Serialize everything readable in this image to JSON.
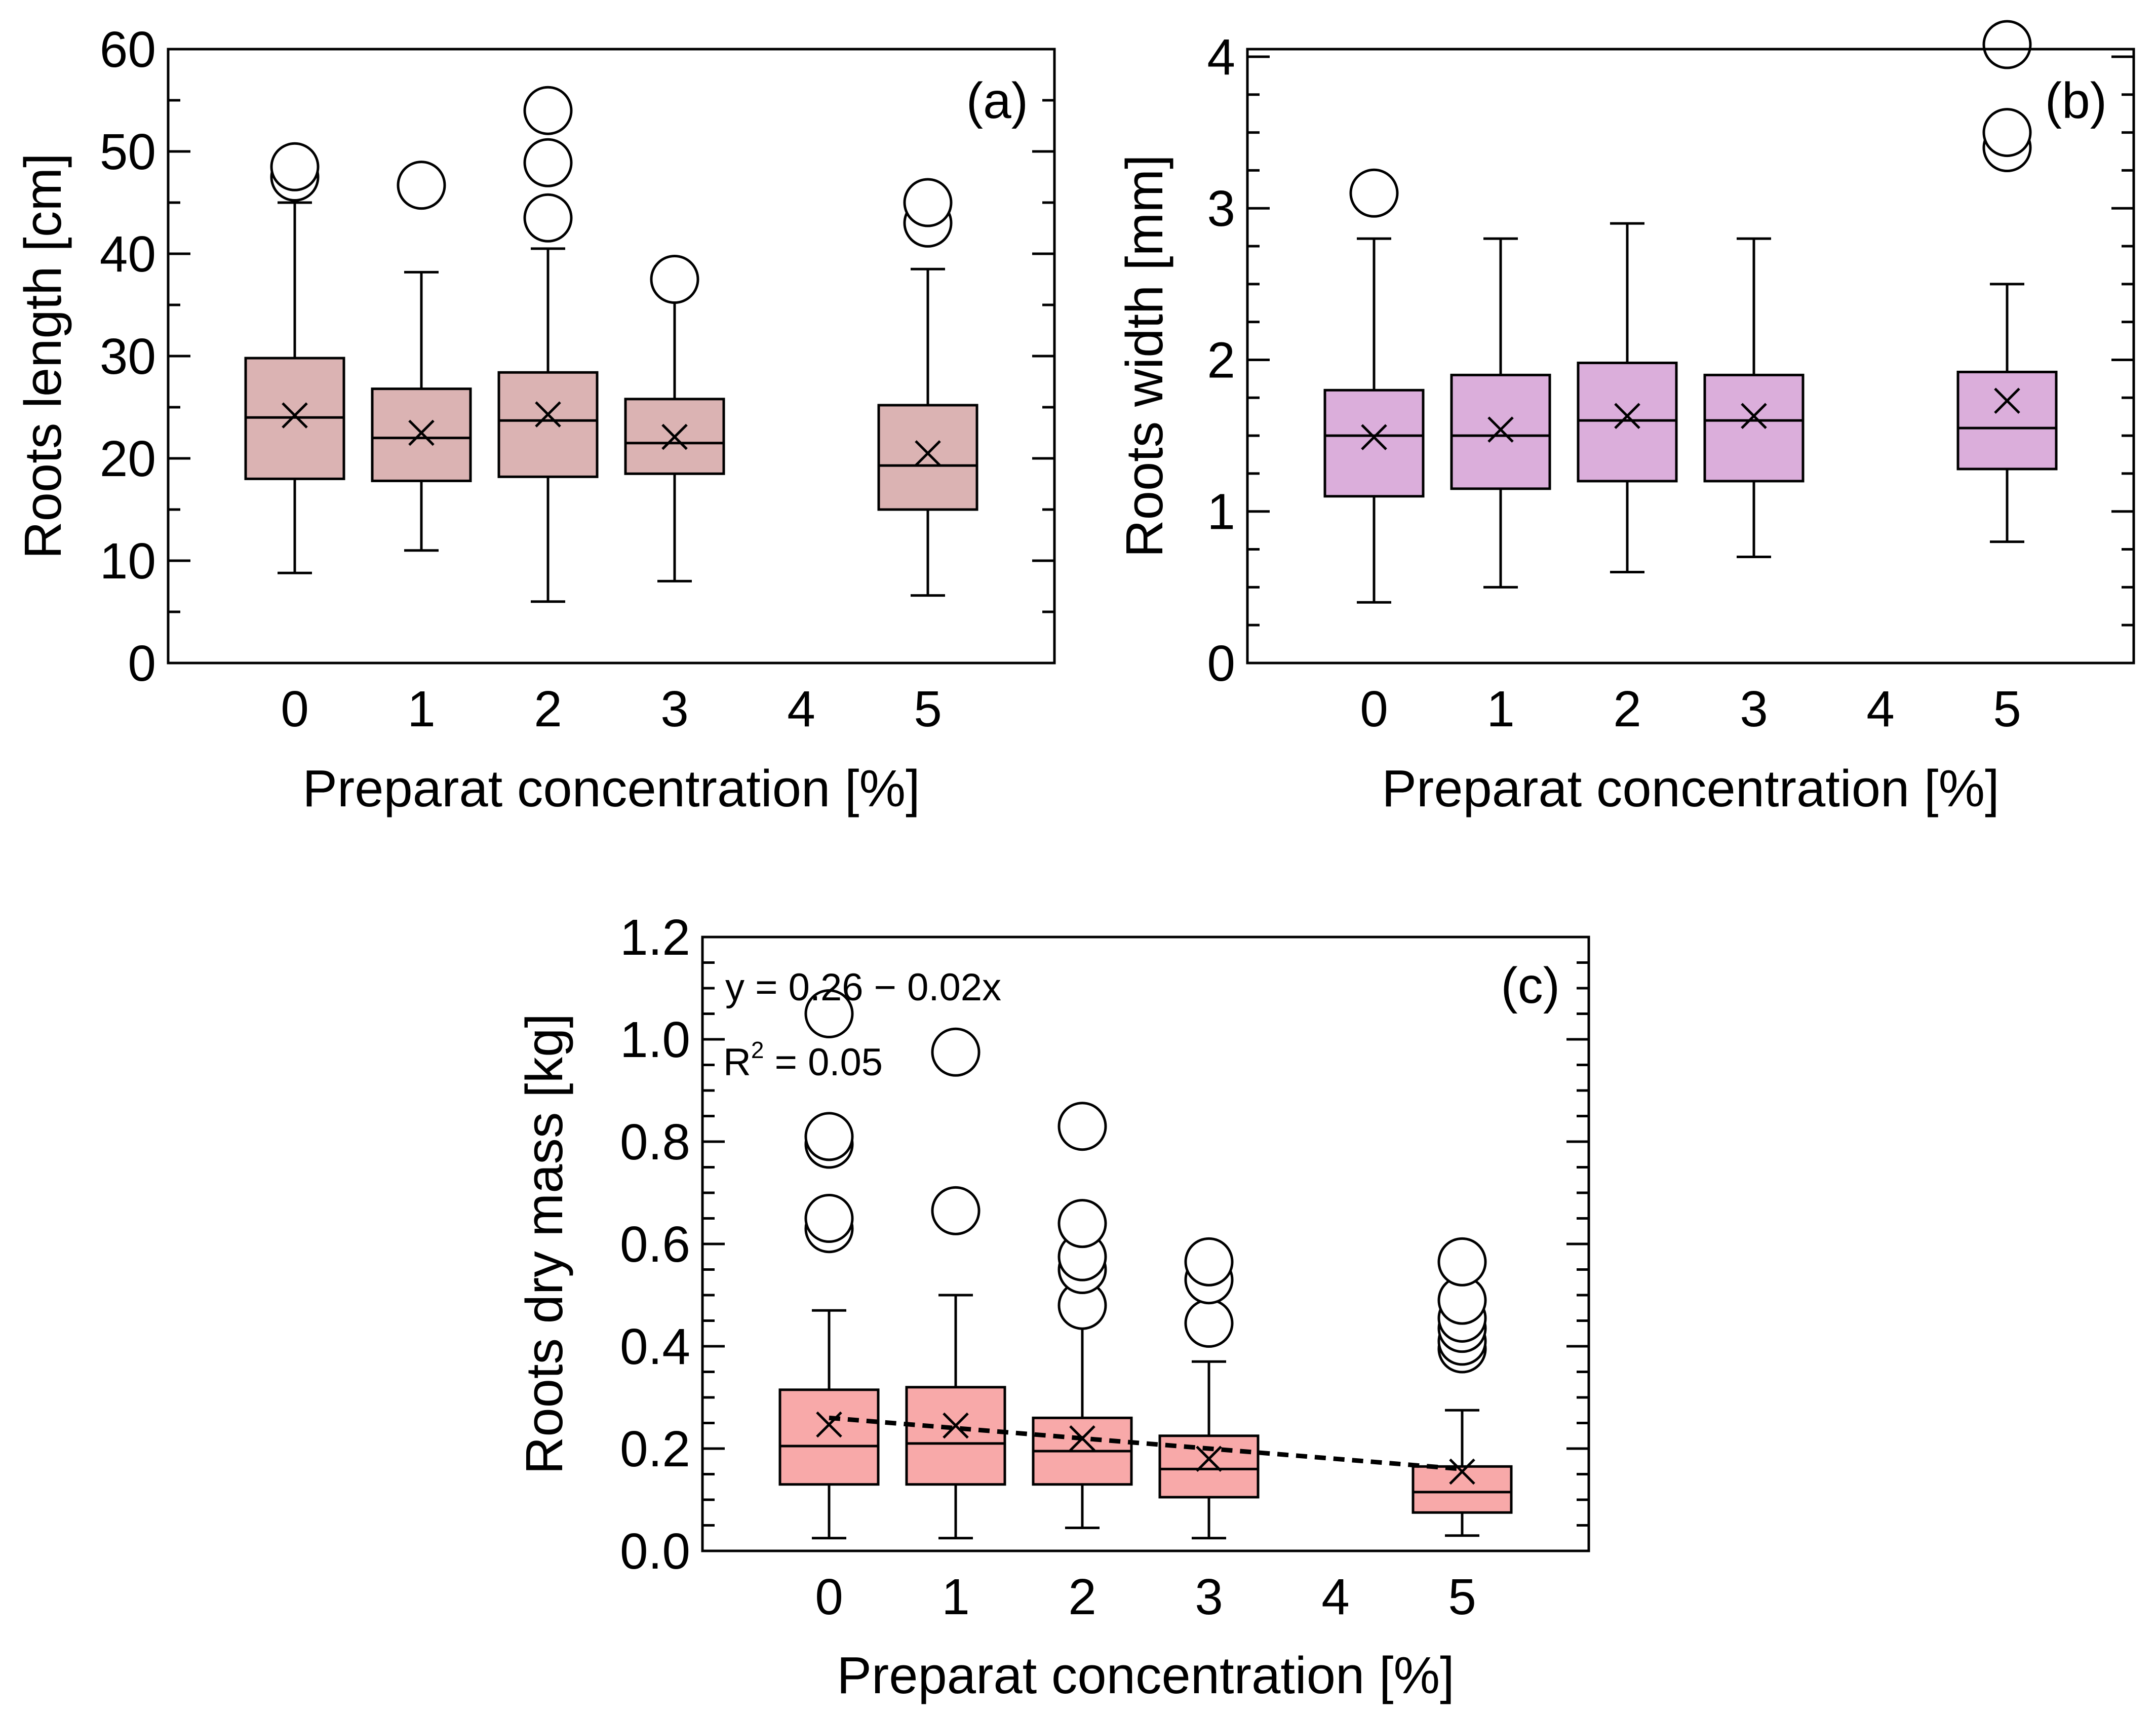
{
  "figure": {
    "chart_data": [
      {
        "id": "a",
        "type": "boxplot",
        "panel_label": "(a)",
        "xlabel": "Preparat concentration [%]",
        "ylabel": "Roots length [cm]",
        "x_ticks": [
          "0",
          "1",
          "2",
          "3",
          "4",
          "5"
        ],
        "xlim": [
          -1,
          6
        ],
        "ylim": [
          0,
          60
        ],
        "y_ticks": [
          "0",
          "10",
          "20",
          "30",
          "40",
          "50",
          "60"
        ],
        "y_tick_values": [
          0,
          10,
          20,
          30,
          40,
          50,
          60
        ],
        "y_minor_step": 5,
        "box_color": "#dbb3b3",
        "boxes": [
          {
            "x": 0,
            "whisker_low": 8.8,
            "q1": 18.0,
            "median": 24.0,
            "q3": 29.8,
            "whisker_high": 45.0,
            "mean": 24.2,
            "outliers": [
              47.5,
              48.5
            ]
          },
          {
            "x": 1,
            "whisker_low": 11.0,
            "q1": 17.8,
            "median": 22.0,
            "q3": 26.8,
            "whisker_high": 38.2,
            "mean": 22.5,
            "outliers": [
              46.7
            ]
          },
          {
            "x": 2,
            "whisker_low": 6.0,
            "q1": 18.2,
            "median": 23.7,
            "q3": 28.4,
            "whisker_high": 40.5,
            "mean": 24.3,
            "outliers": [
              43.5,
              48.9,
              54.0
            ]
          },
          {
            "x": 3,
            "whisker_low": 8.0,
            "q1": 18.5,
            "median": 21.5,
            "q3": 25.8,
            "whisker_high": 36.0,
            "mean": 22.1,
            "outliers": [
              37.5
            ]
          },
          {
            "x": 5,
            "whisker_low": 6.6,
            "q1": 15.0,
            "median": 19.3,
            "q3": 25.2,
            "whisker_high": 38.5,
            "mean": 20.5,
            "outliers": [
              43.0,
              45.0
            ]
          }
        ]
      },
      {
        "id": "b",
        "type": "boxplot",
        "panel_label": "(b)",
        "xlabel": "Preparat concentration [%]",
        "ylabel": "Roots width [mm]",
        "x_ticks": [
          "0",
          "1",
          "2",
          "3",
          "4",
          "5"
        ],
        "xlim": [
          -1,
          6
        ],
        "ylim": [
          0,
          4.05
        ],
        "y_ticks": [
          "0",
          "1",
          "2",
          "3",
          "4"
        ],
        "y_tick_values": [
          0,
          1,
          2,
          3,
          4
        ],
        "y_minor_step": 0.25,
        "box_color": "#dbaedb",
        "boxes": [
          {
            "x": 0,
            "whisker_low": 0.4,
            "q1": 1.1,
            "median": 1.5,
            "q3": 1.8,
            "whisker_high": 2.8,
            "mean": 1.49,
            "outliers": [
              3.1
            ]
          },
          {
            "x": 1,
            "whisker_low": 0.5,
            "q1": 1.15,
            "median": 1.5,
            "q3": 1.9,
            "whisker_high": 2.8,
            "mean": 1.54,
            "outliers": []
          },
          {
            "x": 2,
            "whisker_low": 0.6,
            "q1": 1.2,
            "median": 1.6,
            "q3": 1.98,
            "whisker_high": 2.9,
            "mean": 1.63,
            "outliers": []
          },
          {
            "x": 3,
            "whisker_low": 0.7,
            "q1": 1.2,
            "median": 1.6,
            "q3": 1.9,
            "whisker_high": 2.8,
            "mean": 1.63,
            "outliers": []
          },
          {
            "x": 5,
            "whisker_low": 0.8,
            "q1": 1.28,
            "median": 1.55,
            "q3": 1.92,
            "whisker_high": 2.5,
            "mean": 1.73,
            "outliers": [
              3.4,
              3.5,
              4.08
            ]
          }
        ]
      },
      {
        "id": "c",
        "type": "boxplot",
        "panel_label": "(c)",
        "xlabel": "Preparat concentration [%]",
        "ylabel": "Roots dry mass [kg]",
        "x_ticks": [
          "0",
          "1",
          "2",
          "3",
          "4",
          "5"
        ],
        "xlim": [
          -1,
          6
        ],
        "ylim": [
          0,
          1.2
        ],
        "y_ticks": [
          "0.0",
          "0.2",
          "0.4",
          "0.6",
          "0.8",
          "1.0",
          "1.2"
        ],
        "y_tick_values": [
          0,
          0.2,
          0.4,
          0.6,
          0.8,
          1.0,
          1.2
        ],
        "y_minor_step": 0.05,
        "box_color": "#f8a9a9",
        "equation": "y = 0.26 − 0.02x",
        "r2_label": "R",
        "r2_exponent": "2",
        "r2_value": " = 0.05",
        "trend": {
          "intercept": 0.26,
          "slope": -0.02,
          "x_start": 0,
          "x_end": 5
        },
        "boxes": [
          {
            "x": 0,
            "whisker_low": 0.025,
            "q1": 0.13,
            "median": 0.205,
            "q3": 0.315,
            "whisker_high": 0.47,
            "mean": 0.247,
            "outliers": [
              0.63,
              0.65,
              0.795,
              0.81,
              1.05
            ]
          },
          {
            "x": 1,
            "whisker_low": 0.025,
            "q1": 0.13,
            "median": 0.21,
            "q3": 0.32,
            "whisker_high": 0.5,
            "mean": 0.245,
            "outliers": [
              0.665,
              0.975
            ]
          },
          {
            "x": 2,
            "whisker_low": 0.045,
            "q1": 0.13,
            "median": 0.195,
            "q3": 0.26,
            "whisker_high": 0.455,
            "mean": 0.22,
            "outliers": [
              0.48,
              0.55,
              0.575,
              0.64,
              0.83
            ]
          },
          {
            "x": 3,
            "whisker_low": 0.025,
            "q1": 0.105,
            "median": 0.16,
            "q3": 0.225,
            "whisker_high": 0.37,
            "mean": 0.18,
            "outliers": [
              0.445,
              0.53,
              0.565
            ]
          },
          {
            "x": 5,
            "whisker_low": 0.03,
            "q1": 0.075,
            "median": 0.115,
            "q3": 0.165,
            "whisker_high": 0.275,
            "mean": 0.155,
            "outliers": [
              0.395,
              0.41,
              0.435,
              0.455,
              0.49,
              0.565
            ]
          }
        ]
      }
    ]
  }
}
